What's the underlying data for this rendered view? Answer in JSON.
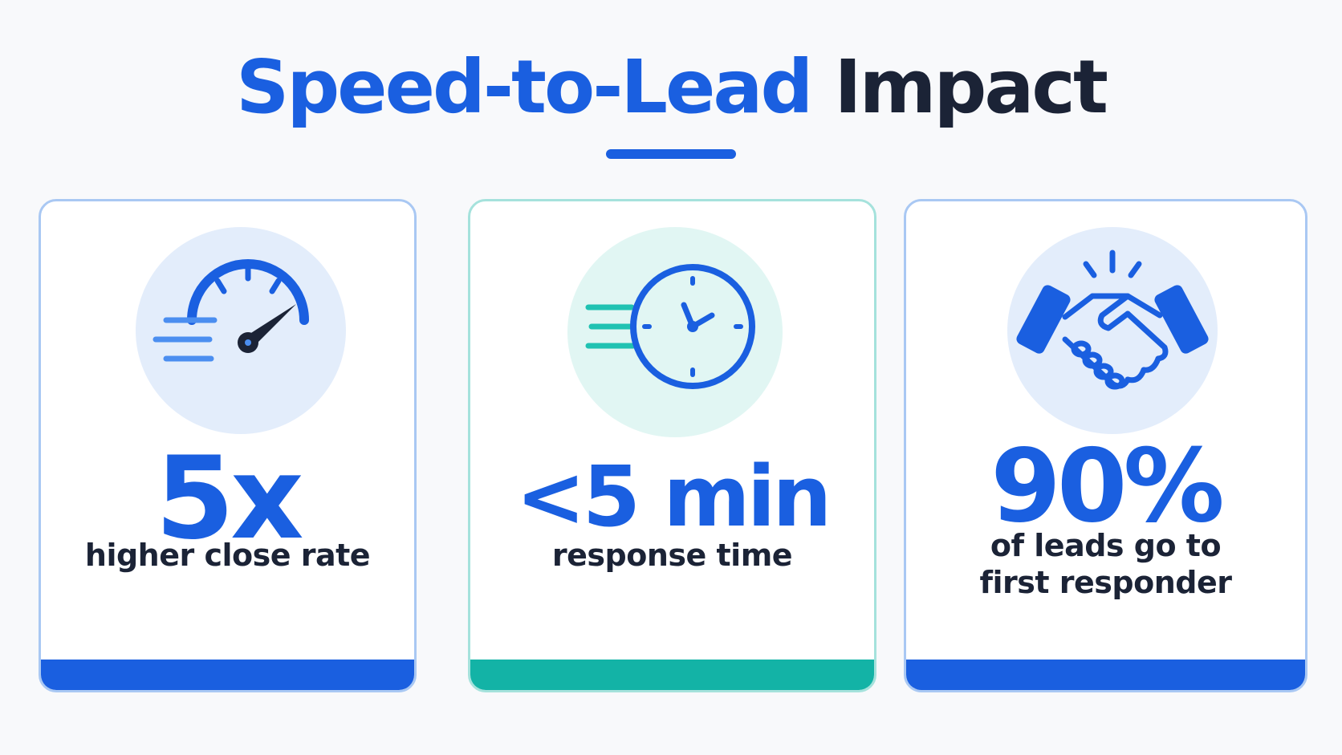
{
  "header": {
    "title_accent": "Speed-to-Lead",
    "title_rest": "Impact"
  },
  "colors": {
    "blue": "#1a5fe0",
    "teal": "#13b3a6",
    "dark": "#1b2336",
    "card_border_blue": "#a9c8f3",
    "card_border_teal": "#a5e2dc",
    "icon_bg_blue": "#e3edfb",
    "icon_bg_teal": "#e1f6f3"
  },
  "cards": [
    {
      "icon": "speedometer-icon",
      "value": "5x",
      "label_line1": "higher close rate",
      "label_line2": ""
    },
    {
      "icon": "clock-icon",
      "value": "<5 min",
      "label_line1": "response time",
      "label_line2": ""
    },
    {
      "icon": "handshake-icon",
      "value": "90%",
      "label_line1": "of leads go to",
      "label_line2": "first responder"
    }
  ]
}
